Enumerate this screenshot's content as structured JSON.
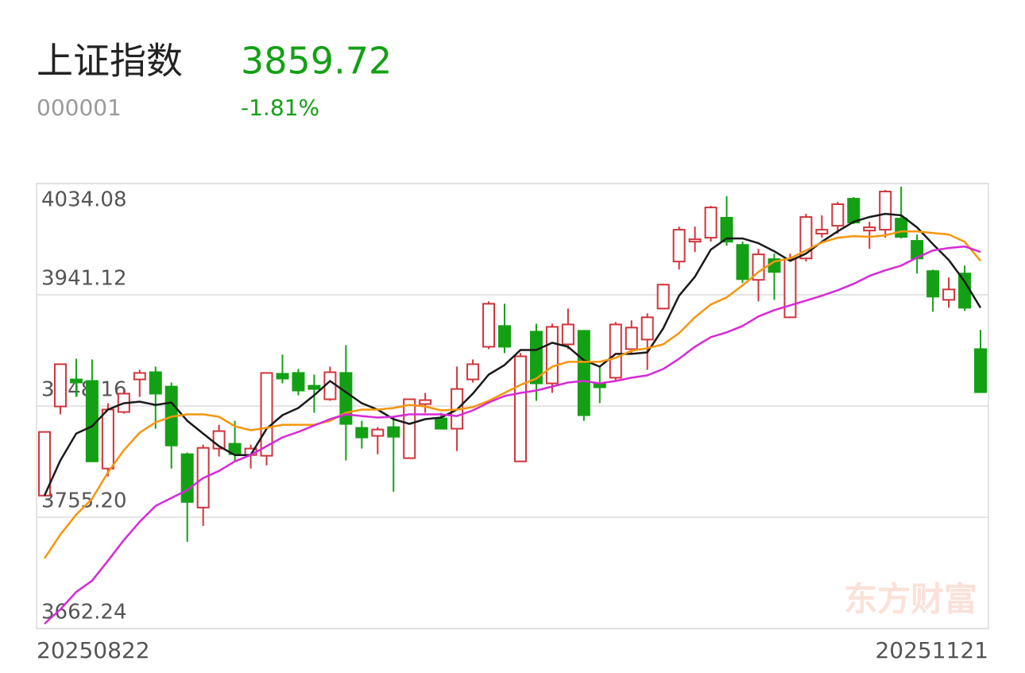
{
  "header": {
    "title": "上证指数",
    "code": "000001",
    "price": "3859.72",
    "change": "-1.81%"
  },
  "watermark": "东方财富",
  "chart_data": {
    "type": "candlestick",
    "categories": [
      "20250822",
      null,
      null,
      null,
      null,
      null,
      null,
      null,
      null,
      null,
      null,
      null,
      null,
      null,
      null,
      null,
      null,
      null,
      null,
      null,
      null,
      null,
      null,
      null,
      null,
      null,
      null,
      null,
      null,
      null,
      null,
      null,
      null,
      null,
      null,
      null,
      null,
      null,
      null,
      null,
      null,
      null,
      null,
      null,
      null,
      null,
      null,
      null,
      null,
      null,
      null,
      null,
      null,
      null,
      null,
      null,
      null,
      null,
      null,
      "20251121"
    ],
    "open": [
      3773.3,
      3847.8,
      3870.4,
      3869.1,
      3795.9,
      3843.2,
      3870.4,
      3876.4,
      3864.4,
      3807.9,
      3763.3,
      3812.6,
      3816.6,
      3807.2,
      3806.6,
      3875.1,
      3875.8,
      3865.1,
      3853.8,
      3875.8,
      3829.9,
      3823.2,
      3830.5,
      3804.6,
      3849.8,
      3837.8,
      3829.2,
      3870.4,
      3897.7,
      3915.0,
      3801.9,
      3910.3,
      3867.1,
      3899.7,
      3911.0,
      3866.4,
      3871.8,
      3895.7,
      3903.7,
      3929.6,
      3968.9,
      3985.5,
      3988.8,
      4005.5,
      3982.8,
      3953.6,
      3970.9,
      3922.3,
      3971.5,
      3992.2,
      3998.8,
      4021.4,
      3994.8,
      3995.5,
      4004.8,
      3986.2,
      3960.9,
      3936.9,
      3958.9,
      3895.7
    ],
    "high": [
      3826.5,
      3883.1,
      3887.7,
      3887.1,
      3850.5,
      3861.1,
      3878.4,
      3881.1,
      3867.8,
      3809.2,
      3815.9,
      3832.5,
      3835.8,
      3815.9,
      3875.8,
      3891.1,
      3879.1,
      3874.4,
      3881.1,
      3899.0,
      3835.8,
      3830.5,
      3839.8,
      3853.8,
      3859.1,
      3842.5,
      3881.1,
      3887.1,
      3935.6,
      3933.6,
      3892.4,
      3917.0,
      3917.0,
      3929.6,
      3911.0,
      3881.1,
      3918.3,
      3919.7,
      3925.6,
      3950.3,
      3998.1,
      3998.1,
      4015.4,
      4023.4,
      3985.5,
      3979.5,
      3975.5,
      3975.5,
      4008.8,
      4007.5,
      4018.8,
      4022.8,
      4002.1,
      4028.7,
      4031.4,
      3991.5,
      3962.2,
      3955.6,
      3965.5,
      3911.7
    ],
    "low": [
      3773.3,
      3841.2,
      3855.8,
      3801.9,
      3789.3,
      3841.8,
      3855.8,
      3829.2,
      3795.9,
      3734.7,
      3748.0,
      3805.9,
      3802.6,
      3795.9,
      3798.6,
      3867.1,
      3857.1,
      3842.5,
      3852.5,
      3802.6,
      3812.6,
      3807.9,
      3776.6,
      3804.6,
      3842.5,
      3829.2,
      3810.6,
      3867.8,
      3895.7,
      3892.4,
      3801.9,
      3852.5,
      3859.1,
      3895.7,
      3835.8,
      3850.5,
      3869.1,
      3891.7,
      3878.4,
      3929.0,
      3962.2,
      3976.9,
      3985.5,
      3982.2,
      3950.9,
      3935.6,
      3936.9,
      3922.3,
      3968.9,
      3988.8,
      3992.2,
      4000.1,
      3979.5,
      3988.8,
      3988.2,
      3958.9,
      3927.0,
      3930.3,
      3927.6,
      3859.72
    ],
    "close": [
      3826.5,
      3883.1,
      3867.8,
      3801.9,
      3845.2,
      3858.5,
      3875.8,
      3858.5,
      3815.2,
      3768.0,
      3813.2,
      3827.2,
      3807.9,
      3812.6,
      3875.8,
      3871.1,
      3861.1,
      3862.4,
      3876.4,
      3833.2,
      3821.9,
      3828.5,
      3822.5,
      3853.8,
      3853.1,
      3829.2,
      3862.4,
      3883.1,
      3933.6,
      3897.7,
      3889.7,
      3867.1,
      3914.3,
      3916.3,
      3840.5,
      3863.8,
      3916.3,
      3913.7,
      3922.3,
      3949.6,
      3995.5,
      3987.5,
      4014.1,
      3985.5,
      3954.2,
      3974.9,
      3960.2,
      3970.9,
      4006.1,
      3995.5,
      4016.8,
      4001.5,
      3997.5,
      4027.4,
      3989.5,
      3971.5,
      3939.6,
      3945.6,
      3930.3,
      3859.72
    ],
    "up_color": "#d0343c",
    "down_color": "#14a014",
    "lines": [
      {
        "color": "#1a1a1a",
        "values": [
          3773.3,
          3802.6,
          3825.2,
          3831.2,
          3845.2,
          3850.5,
          3851.8,
          3849.1,
          3851.1,
          3835.8,
          3825.2,
          3814.6,
          3807.2,
          3807.2,
          3829.2,
          3840.5,
          3846.5,
          3857.1,
          3869.1,
          3859.8,
          3850.5,
          3845.2,
          3837.2,
          3833.2,
          3837.2,
          3838.5,
          3845.2,
          3858.5,
          3874.4,
          3882.4,
          3895.0,
          3895.0,
          3901.0,
          3897.7,
          3886.4,
          3881.1,
          3891.7,
          3891.7,
          3893.0,
          3913.0,
          3940.3,
          3956.2,
          3978.9,
          3988.2,
          3988.2,
          3984.2,
          3977.5,
          3969.5,
          3975.5,
          3985.5,
          3994.1,
          4002.1,
          4006.1,
          4008.8,
          4007.5,
          3997.5,
          3983.5,
          3970.2,
          3952.2,
          3930.3
        ]
      },
      {
        "color": "#f5960f",
        "values": [
          3720.8,
          3740.7,
          3757.4,
          3770.7,
          3792.6,
          3811.2,
          3825.9,
          3834.5,
          3839.2,
          3841.2,
          3841.2,
          3839.2,
          3831.2,
          3827.9,
          3829.9,
          3832.5,
          3832.5,
          3832.5,
          3835.8,
          3842.5,
          3845.2,
          3845.2,
          3846.5,
          3849.1,
          3847.8,
          3844.5,
          3845.2,
          3847.2,
          3852.5,
          3859.1,
          3865.8,
          3871.1,
          3881.1,
          3885.1,
          3885.1,
          3885.1,
          3888.4,
          3894.4,
          3896.4,
          3899.7,
          3909.0,
          3922.3,
          3933.0,
          3938.9,
          3948.9,
          3960.2,
          3968.9,
          3971.5,
          3978.2,
          3984.8,
          3988.8,
          3990.2,
          3989.5,
          3990.8,
          3994.1,
          3994.1,
          3992.8,
          3991.5,
          3985.5,
          3969.5
        ]
      },
      {
        "color": "#d62ad6",
        "values": [
          3666.2,
          3678.2,
          3692.8,
          3702.2,
          3718.8,
          3736.1,
          3751.4,
          3764.7,
          3771.3,
          3778.0,
          3788.0,
          3793.9,
          3801.9,
          3807.2,
          3814.6,
          3821.9,
          3826.5,
          3831.9,
          3837.2,
          3841.2,
          3839.8,
          3838.5,
          3839.2,
          3841.2,
          3841.2,
          3841.2,
          3839.8,
          3844.5,
          3851.1,
          3856.5,
          3859.1,
          3861.1,
          3864.4,
          3867.8,
          3869.1,
          3867.1,
          3869.1,
          3871.8,
          3873.8,
          3879.1,
          3887.7,
          3897.7,
          3905.7,
          3909.7,
          3915.0,
          3923.0,
          3928.3,
          3932.3,
          3936.3,
          3940.3,
          3944.9,
          3950.3,
          3956.9,
          3961.6,
          3965.5,
          3972.2,
          3978.2,
          3980.2,
          3981.5,
          3976.9
        ]
      }
    ],
    "ylim": [
      3662.24,
      4034.08
    ],
    "yticks": [
      3662.24,
      {
        "value": 3755.2,
        "label": "3755.20"
      },
      3848.16,
      3941.12,
      4034.08
    ],
    "grid": true
  }
}
